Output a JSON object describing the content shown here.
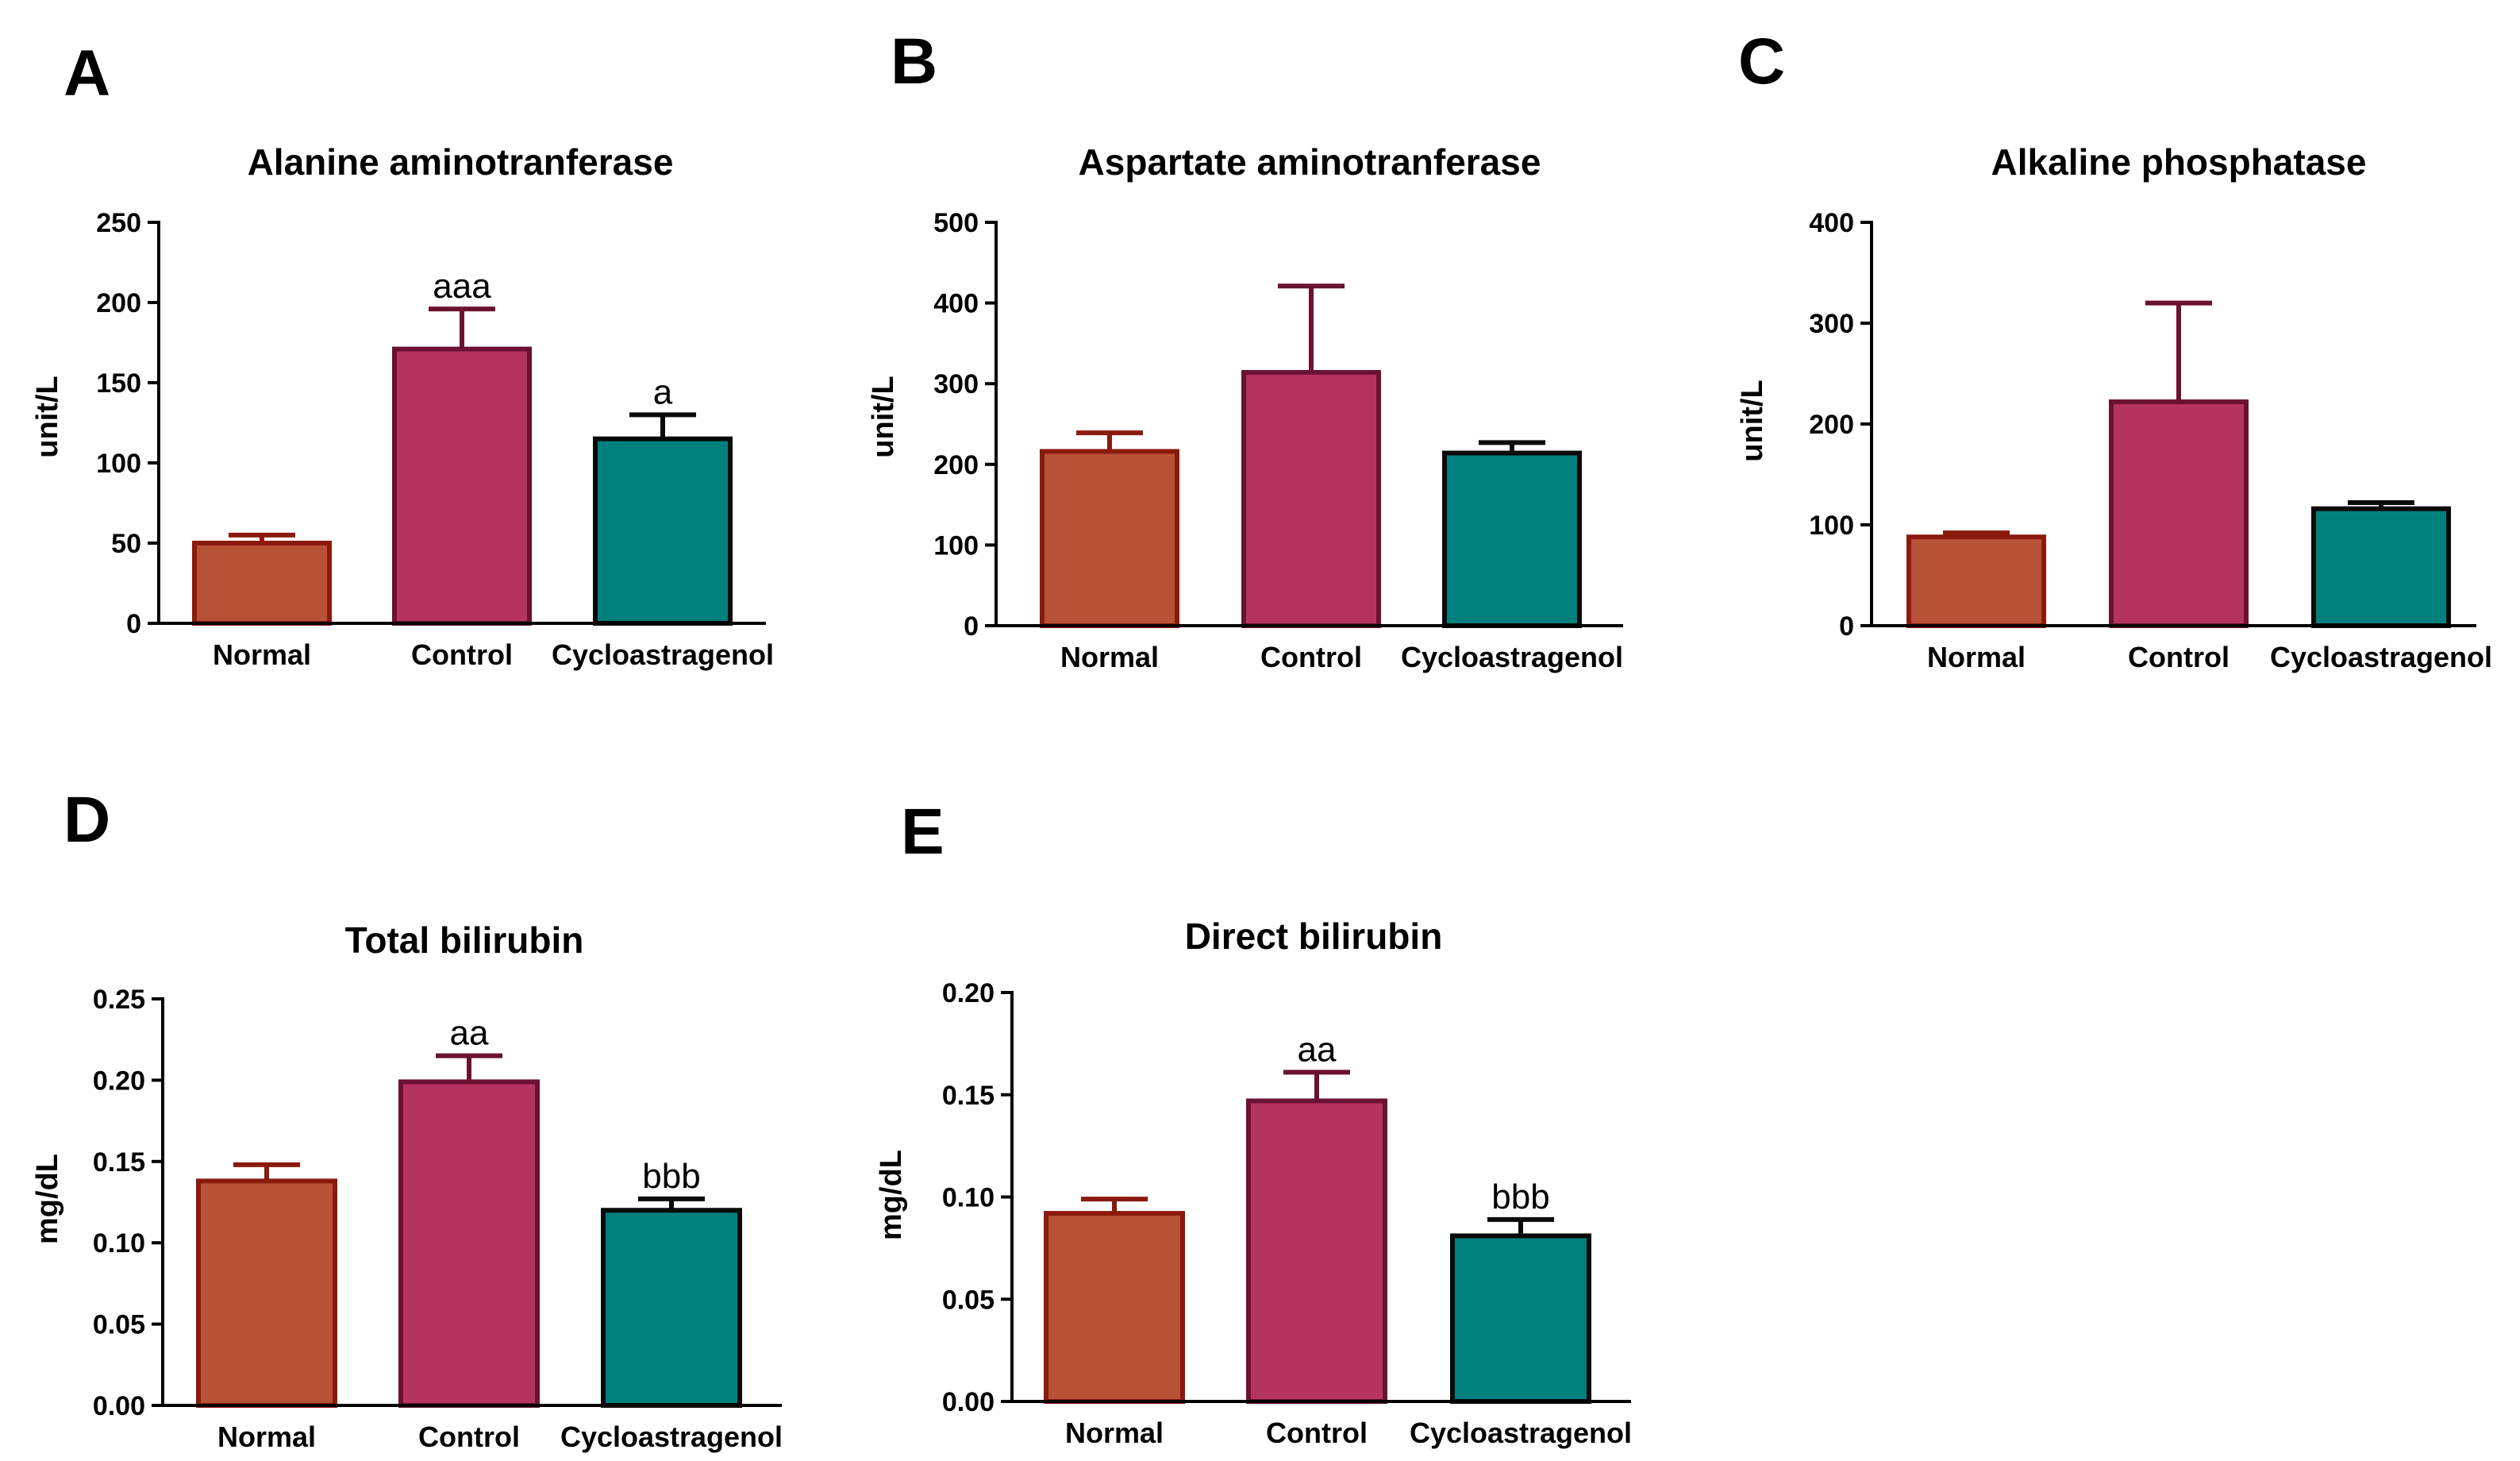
{
  "colors": {
    "normal_fill": "#b85237",
    "normal_stroke": "#8b1a0e",
    "control_fill": "#b5345f",
    "control_stroke": "#6b1233",
    "cyclo_fill": "#00807d",
    "cyclo_stroke": "#0a0a0a"
  },
  "chart_data": [
    {
      "type": "bar",
      "panel": "A",
      "title": "Alanine aminotranferase",
      "ylabel": "unit/L",
      "xlabel": "",
      "categories": [
        "Normal",
        "Control",
        "Cycloastragenol"
      ],
      "values": [
        50,
        171,
        115
      ],
      "errors": [
        5,
        25,
        15
      ],
      "annotations": [
        "",
        "aaa",
        "a"
      ],
      "ylim": [
        0,
        250
      ],
      "yticks": [
        0,
        50,
        100,
        150,
        200,
        250
      ],
      "ytick_labels": [
        "0",
        "50",
        "100",
        "150",
        "200",
        "250"
      ],
      "grid": false,
      "legend": "none"
    },
    {
      "type": "bar",
      "panel": "B",
      "title": "Aspartate aminotranferase",
      "ylabel": "unit/L",
      "xlabel": "",
      "categories": [
        "Normal",
        "Control",
        "Cycloastragenol"
      ],
      "values": [
        216,
        314,
        214
      ],
      "errors": [
        23,
        107,
        13
      ],
      "annotations": [
        "",
        "",
        ""
      ],
      "ylim": [
        0,
        500
      ],
      "yticks": [
        0,
        100,
        200,
        300,
        400,
        500
      ],
      "ytick_labels": [
        "0",
        "100",
        "200",
        "300",
        "400",
        "500"
      ],
      "grid": false,
      "legend": "none"
    },
    {
      "type": "bar",
      "panel": "C",
      "title": "Alkaline phosphatase",
      "ylabel": "unit/L",
      "xlabel": "",
      "categories": [
        "Normal",
        "Control",
        "Cycloastragenol"
      ],
      "values": [
        88,
        222,
        116
      ],
      "errors": [
        4,
        98,
        6
      ],
      "annotations": [
        "",
        "",
        ""
      ],
      "ylim": [
        0,
        400
      ],
      "yticks": [
        0,
        100,
        200,
        300,
        400
      ],
      "ytick_labels": [
        "0",
        "100",
        "200",
        "300",
        "400"
      ],
      "grid": false,
      "legend": "none"
    },
    {
      "type": "bar",
      "panel": "D",
      "title": "Total bilirubin",
      "ylabel": "mg/dL",
      "xlabel": "",
      "categories": [
        "Normal",
        "Control",
        "Cycloastragenol"
      ],
      "values": [
        0.138,
        0.199,
        0.12
      ],
      "errors": [
        0.01,
        0.016,
        0.007
      ],
      "annotations": [
        "",
        "aa",
        "bbb"
      ],
      "ylim": [
        0,
        0.25
      ],
      "yticks": [
        0,
        0.05,
        0.1,
        0.15,
        0.2,
        0.25
      ],
      "ytick_labels": [
        "0.00",
        "0.05",
        "0.10",
        "0.15",
        "0.20",
        "0.25"
      ],
      "grid": false,
      "legend": "none"
    },
    {
      "type": "bar",
      "panel": "E",
      "title": "Direct bilirubin",
      "ylabel": "mg/dL",
      "xlabel": "",
      "categories": [
        "Normal",
        "Control",
        "Cycloastragenol"
      ],
      "values": [
        0.092,
        0.147,
        0.081
      ],
      "errors": [
        0.007,
        0.014,
        0.008
      ],
      "annotations": [
        "",
        "aa",
        "bbb"
      ],
      "ylim": [
        0,
        0.2
      ],
      "yticks": [
        0,
        0.05,
        0.1,
        0.15,
        0.2
      ],
      "ytick_labels": [
        "0.00",
        "0.05",
        "0.10",
        "0.15",
        "0.20"
      ],
      "grid": false,
      "legend": "none"
    }
  ]
}
